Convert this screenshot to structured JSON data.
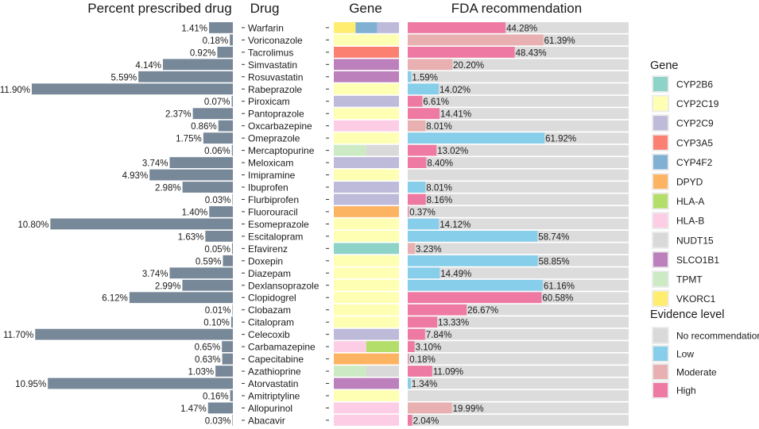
{
  "chart_data": {
    "type": "bar",
    "panels": {
      "percent": {
        "title": "Percent prescribed drug"
      },
      "drug": {
        "title": "Drug"
      },
      "gene": {
        "title": "Gene"
      },
      "fda": {
        "title": "FDA recommendation"
      }
    },
    "legend_gene": {
      "title": "Gene",
      "entries": [
        {
          "name": "CYP2B6",
          "color": "#8dd3c7"
        },
        {
          "name": "CYP2C19",
          "color": "#ffffb3"
        },
        {
          "name": "CYP2C9",
          "color": "#bebada"
        },
        {
          "name": "CYP3A5",
          "color": "#fb8072"
        },
        {
          "name": "CYP4F2",
          "color": "#80b1d3"
        },
        {
          "name": "DPYD",
          "color": "#fdb462"
        },
        {
          "name": "HLA-A",
          "color": "#b3de69"
        },
        {
          "name": "HLA-B",
          "color": "#fccde5"
        },
        {
          "name": "NUDT15",
          "color": "#d9d9d9"
        },
        {
          "name": "SLCO1B1",
          "color": "#bc80bd"
        },
        {
          "name": "TPMT",
          "color": "#ccebc5"
        },
        {
          "name": "VKORC1",
          "color": "#ffed6f"
        }
      ]
    },
    "legend_evidence": {
      "title": "Evidence level",
      "entries": [
        {
          "name": "No recommendation",
          "color": "#d9d9d9"
        },
        {
          "name": "Low",
          "color": "#87ceeb"
        },
        {
          "name": "Moderate",
          "color": "#e8b0b0"
        },
        {
          "name": "High",
          "color": "#ee7aa3"
        }
      ]
    },
    "rows": [
      {
        "drug": "Warfarin",
        "percent": 1.41,
        "percent_label": "1.41%",
        "genes": [
          "VKORC1",
          "CYP4F2",
          "CYP2C9"
        ],
        "fda_value": 44.28,
        "fda_label": "44.28%",
        "evidence": "High"
      },
      {
        "drug": "Voriconazole",
        "percent": 0.18,
        "percent_label": "0.18%",
        "genes": [
          "CYP2C19"
        ],
        "fda_value": 61.39,
        "fda_label": "61.39%",
        "evidence": "Moderate"
      },
      {
        "drug": "Tacrolimus",
        "percent": 0.92,
        "percent_label": "0.92%",
        "genes": [
          "CYP3A5"
        ],
        "fda_value": 48.43,
        "fda_label": "48.43%",
        "evidence": "High"
      },
      {
        "drug": "Simvastatin",
        "percent": 4.14,
        "percent_label": "4.14%",
        "genes": [
          "SLCO1B1"
        ],
        "fda_value": 20.2,
        "fda_label": "20.20%",
        "evidence": "Moderate"
      },
      {
        "drug": "Rosuvastatin",
        "percent": 5.59,
        "percent_label": "5.59%",
        "genes": [
          "SLCO1B1"
        ],
        "fda_value": 1.59,
        "fda_label": "1.59%",
        "evidence": "Low"
      },
      {
        "drug": "Rabeprazole",
        "percent": 11.9,
        "percent_label": "11.90%",
        "genes": [
          "CYP2C19"
        ],
        "fda_value": 14.02,
        "fda_label": "14.02%",
        "evidence": "Low"
      },
      {
        "drug": "Piroxicam",
        "percent": 0.07,
        "percent_label": "0.07%",
        "genes": [
          "CYP2C9"
        ],
        "fda_value": 6.61,
        "fda_label": "6.61%",
        "evidence": "High"
      },
      {
        "drug": "Pantoprazole",
        "percent": 2.37,
        "percent_label": "2.37%",
        "genes": [
          "CYP2C19"
        ],
        "fda_value": 14.41,
        "fda_label": "14.41%",
        "evidence": "High"
      },
      {
        "drug": "Oxcarbazepine",
        "percent": 0.86,
        "percent_label": "0.86%",
        "genes": [
          "HLA-B"
        ],
        "fda_value": 8.01,
        "fda_label": "8.01%",
        "evidence": "Moderate"
      },
      {
        "drug": "Omeprazole",
        "percent": 1.75,
        "percent_label": "1.75%",
        "genes": [
          "CYP2C19"
        ],
        "fda_value": 61.92,
        "fda_label": "61.92%",
        "evidence": "Low"
      },
      {
        "drug": "Mercaptopurine",
        "percent": 0.06,
        "percent_label": "0.06%",
        "genes": [
          "TPMT",
          "NUDT15"
        ],
        "fda_value": 13.02,
        "fda_label": "13.02%",
        "evidence": "High"
      },
      {
        "drug": "Meloxicam",
        "percent": 3.74,
        "percent_label": "3.74%",
        "genes": [
          "CYP2C9"
        ],
        "fda_value": 8.4,
        "fda_label": "8.40%",
        "evidence": "High"
      },
      {
        "drug": "Imipramine",
        "percent": 4.93,
        "percent_label": "4.93%",
        "genes": [
          "CYP2C19"
        ],
        "fda_value": null,
        "fda_label": "",
        "evidence": "No recommendation"
      },
      {
        "drug": "Ibuprofen",
        "percent": 2.98,
        "percent_label": "2.98%",
        "genes": [
          "CYP2C9"
        ],
        "fda_value": 8.01,
        "fda_label": "8.01%",
        "evidence": "Low"
      },
      {
        "drug": "Flurbiprofen",
        "percent": 0.03,
        "percent_label": "0.03%",
        "genes": [
          "CYP2C9"
        ],
        "fda_value": 8.16,
        "fda_label": "8.16%",
        "evidence": "High"
      },
      {
        "drug": "Fluorouracil",
        "percent": 1.4,
        "percent_label": "1.40%",
        "genes": [
          "DPYD"
        ],
        "fda_value": 0.37,
        "fda_label": "0.37%",
        "evidence": "High"
      },
      {
        "drug": "Esomeprazole",
        "percent": 10.8,
        "percent_label": "10.80%",
        "genes": [
          "CYP2C19"
        ],
        "fda_value": 14.12,
        "fda_label": "14.12%",
        "evidence": "Low"
      },
      {
        "drug": "Escitalopram",
        "percent": 1.63,
        "percent_label": "1.63%",
        "genes": [
          "CYP2C19"
        ],
        "fda_value": 58.74,
        "fda_label": "58.74%",
        "evidence": "Low"
      },
      {
        "drug": "Efavirenz",
        "percent": 0.05,
        "percent_label": "0.05%",
        "genes": [
          "CYP2B6"
        ],
        "fda_value": 3.23,
        "fda_label": "3.23%",
        "evidence": "Moderate"
      },
      {
        "drug": "Doxepin",
        "percent": 0.59,
        "percent_label": "0.59%",
        "genes": [
          "CYP2C19"
        ],
        "fda_value": 58.85,
        "fda_label": "58.85%",
        "evidence": "Low"
      },
      {
        "drug": "Diazepam",
        "percent": 3.74,
        "percent_label": "3.74%",
        "genes": [
          "CYP2C19"
        ],
        "fda_value": 14.49,
        "fda_label": "14.49%",
        "evidence": "Low"
      },
      {
        "drug": "Dexlansoprazole",
        "percent": 2.99,
        "percent_label": "2.99%",
        "genes": [
          "CYP2C19"
        ],
        "fda_value": 61.16,
        "fda_label": "61.16%",
        "evidence": "Low"
      },
      {
        "drug": "Clopidogrel",
        "percent": 6.12,
        "percent_label": "6.12%",
        "genes": [
          "CYP2C19"
        ],
        "fda_value": 60.58,
        "fda_label": "60.58%",
        "evidence": "High"
      },
      {
        "drug": "Clobazam",
        "percent": 0.01,
        "percent_label": "0.01%",
        "genes": [
          "CYP2C19"
        ],
        "fda_value": 26.67,
        "fda_label": "26.67%",
        "evidence": "High"
      },
      {
        "drug": "Citalopram",
        "percent": 0.1,
        "percent_label": "0.10%",
        "genes": [
          "CYP2C19"
        ],
        "fda_value": 13.33,
        "fda_label": "13.33%",
        "evidence": "High"
      },
      {
        "drug": "Celecoxib",
        "percent": 11.7,
        "percent_label": "11.70%",
        "genes": [
          "CYP2C9"
        ],
        "fda_value": 7.84,
        "fda_label": "7.84%",
        "evidence": "High"
      },
      {
        "drug": "Carbamazepine",
        "percent": 0.65,
        "percent_label": "0.65%",
        "genes": [
          "HLA-B",
          "HLA-A"
        ],
        "fda_value": 3.1,
        "fda_label": "3.10%",
        "evidence": "High"
      },
      {
        "drug": "Capecitabine",
        "percent": 0.63,
        "percent_label": "0.63%",
        "genes": [
          "DPYD"
        ],
        "fda_value": 0.18,
        "fda_label": "0.18%",
        "evidence": "High"
      },
      {
        "drug": "Azathioprine",
        "percent": 1.03,
        "percent_label": "1.03%",
        "genes": [
          "TPMT",
          "NUDT15"
        ],
        "fda_value": 11.09,
        "fda_label": "11.09%",
        "evidence": "High"
      },
      {
        "drug": "Atorvastatin",
        "percent": 10.95,
        "percent_label": "10.95%",
        "genes": [
          "SLCO1B1"
        ],
        "fda_value": 1.34,
        "fda_label": "1.34%",
        "evidence": "Low"
      },
      {
        "drug": "Amitriptyline",
        "percent": 0.16,
        "percent_label": "0.16%",
        "genes": [
          "CYP2C19"
        ],
        "fda_value": null,
        "fda_label": "",
        "evidence": "No recommendation"
      },
      {
        "drug": "Allopurinol",
        "percent": 1.47,
        "percent_label": "1.47%",
        "genes": [
          "HLA-B"
        ],
        "fda_value": 19.99,
        "fda_label": "19.99%",
        "evidence": "Moderate"
      },
      {
        "drug": "Abacavir",
        "percent": 0.03,
        "percent_label": "0.03%",
        "genes": [
          "HLA-B"
        ],
        "fda_value": 2.04,
        "fda_label": "2.04%",
        "evidence": "High"
      }
    ],
    "percent_axis_max": 11.9,
    "fda_axis_max": 100
  }
}
